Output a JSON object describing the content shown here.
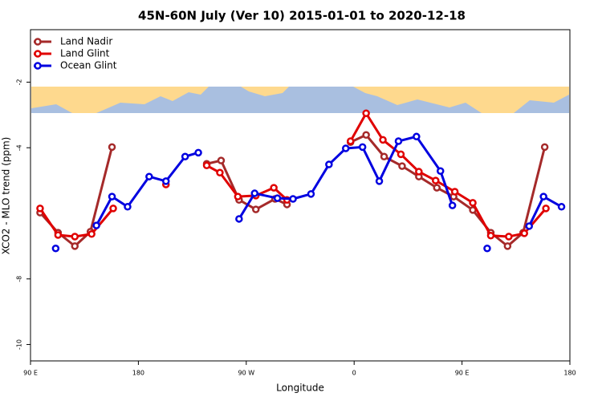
{
  "chart_data": {
    "type": "line",
    "title": "45N-60N July (Ver 10)   2015-01-01 to 2020-12-18",
    "x_label": "Longitude",
    "y_label": "XCO2 - MLO trend (ppm)",
    "xlim": [
      90,
      540
    ],
    "xticks": [
      {
        "value": 90,
        "label": "90 E"
      },
      180,
      {
        "value": 270,
        "label": "90 W"
      },
      {
        "value": 360,
        "label": "0"
      },
      {
        "value": 450,
        "label": "90 E"
      },
      {
        "value": 540,
        "label": "180"
      }
    ],
    "ylim": [
      -10.5,
      -0.4
    ],
    "yticks": [
      -10,
      -8,
      -4,
      -2
    ],
    "legend": "top-left",
    "series": [
      {
        "name": "Land Nadir",
        "color": "#a52a2a",
        "x": [
          98,
          113,
          127,
          140,
          158,
          null,
          237,
          249,
          264,
          278,
          294,
          304,
          null,
          357,
          370,
          385,
          400,
          414,
          429,
          443,
          459,
          474,
          488,
          501,
          519
        ],
        "values": [
          -5.98,
          -6.59,
          -7.0,
          -6.56,
          -3.98,
          null,
          -4.49,
          -4.39,
          -5.59,
          -5.88,
          -5.56,
          -5.73,
          null,
          -3.83,
          -3.61,
          -4.27,
          -4.56,
          -4.88,
          -5.22,
          -5.49,
          -5.9,
          -6.59,
          -7.0,
          -6.59,
          -3.98
        ]
      },
      {
        "name": "Land Glint",
        "color": "#e00000",
        "x": [
          98,
          113,
          127,
          141,
          159,
          null,
          203,
          null,
          237,
          248,
          263,
          278,
          293,
          304,
          null,
          357,
          370,
          384,
          399,
          414,
          428,
          444,
          459,
          474,
          489,
          502,
          520
        ],
        "values": [
          -5.85,
          -6.66,
          -6.71,
          -6.63,
          -5.85,
          null,
          -5.12,
          null,
          -4.54,
          -4.76,
          -5.49,
          -5.46,
          -5.22,
          -5.59,
          null,
          -3.8,
          -2.95,
          -3.76,
          -4.2,
          -4.73,
          -5.0,
          -5.34,
          -5.68,
          -6.68,
          -6.71,
          -6.61,
          -5.85
        ]
      },
      {
        "name": "Ocean Glint",
        "color": "#0000e0",
        "x": [
          111,
          null,
          145,
          158,
          171,
          189,
          203,
          219,
          230,
          null,
          264,
          277,
          296,
          309,
          324,
          339,
          353,
          367,
          381,
          397,
          412,
          432,
          442,
          null,
          471,
          null,
          506,
          518,
          533
        ],
        "values": [
          -7.07,
          null,
          -6.37,
          -5.49,
          -5.8,
          -4.88,
          -5.02,
          -4.27,
          -4.15,
          null,
          -6.17,
          -5.39,
          -5.54,
          -5.56,
          -5.41,
          -4.51,
          -4.02,
          -3.98,
          -5.02,
          -3.8,
          -3.66,
          -4.71,
          -5.76,
          null,
          -7.07,
          null,
          -6.39,
          -5.49,
          -5.8
        ]
      }
    ]
  }
}
